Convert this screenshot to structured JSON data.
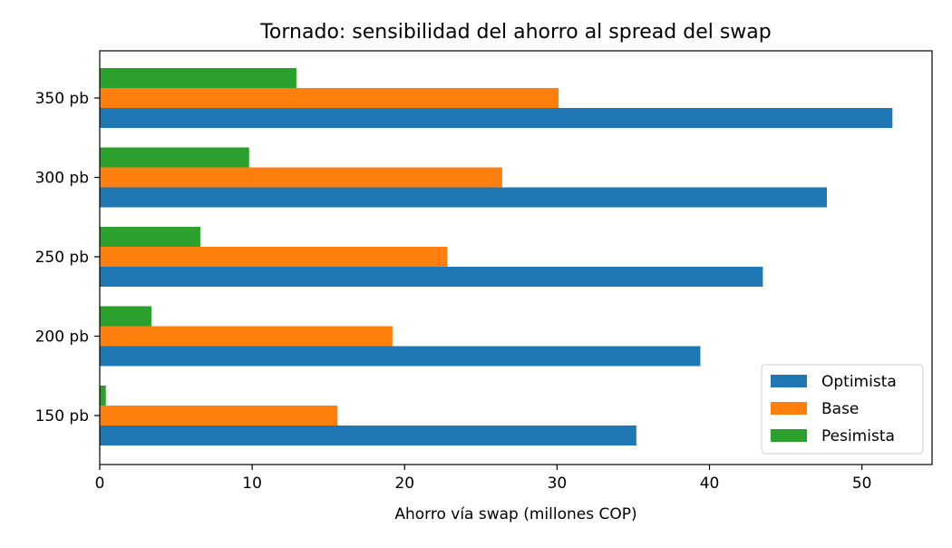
{
  "chart_data": {
    "type": "bar",
    "orientation": "horizontal",
    "title": "Tornado: sensibilidad del ahorro al spread del swap",
    "xlabel": "Ahorro vía swap (millones COP)",
    "ylabel": "",
    "categories": [
      "150 pb",
      "200 pb",
      "250 pb",
      "300 pb",
      "350 pb"
    ],
    "series": [
      {
        "name": "Optimista",
        "color": "#1f77b4",
        "values": [
          35.2,
          39.4,
          43.5,
          47.7,
          52.0
        ]
      },
      {
        "name": "Base",
        "color": "#ff7f0e",
        "values": [
          15.6,
          19.2,
          22.8,
          26.4,
          30.1
        ]
      },
      {
        "name": "Pesimista",
        "color": "#2ca02c",
        "values": [
          0.4,
          3.4,
          6.6,
          9.8,
          12.9
        ]
      }
    ],
    "xlim": [
      0,
      54.6
    ],
    "xticks": [
      0,
      10,
      20,
      30,
      40,
      50
    ],
    "xtick_labels": [
      "0",
      "10",
      "20",
      "30",
      "40",
      "50"
    ],
    "grid": false,
    "legend": {
      "position": "lower-right",
      "entries": [
        "Optimista",
        "Base",
        "Pesimista"
      ]
    }
  }
}
